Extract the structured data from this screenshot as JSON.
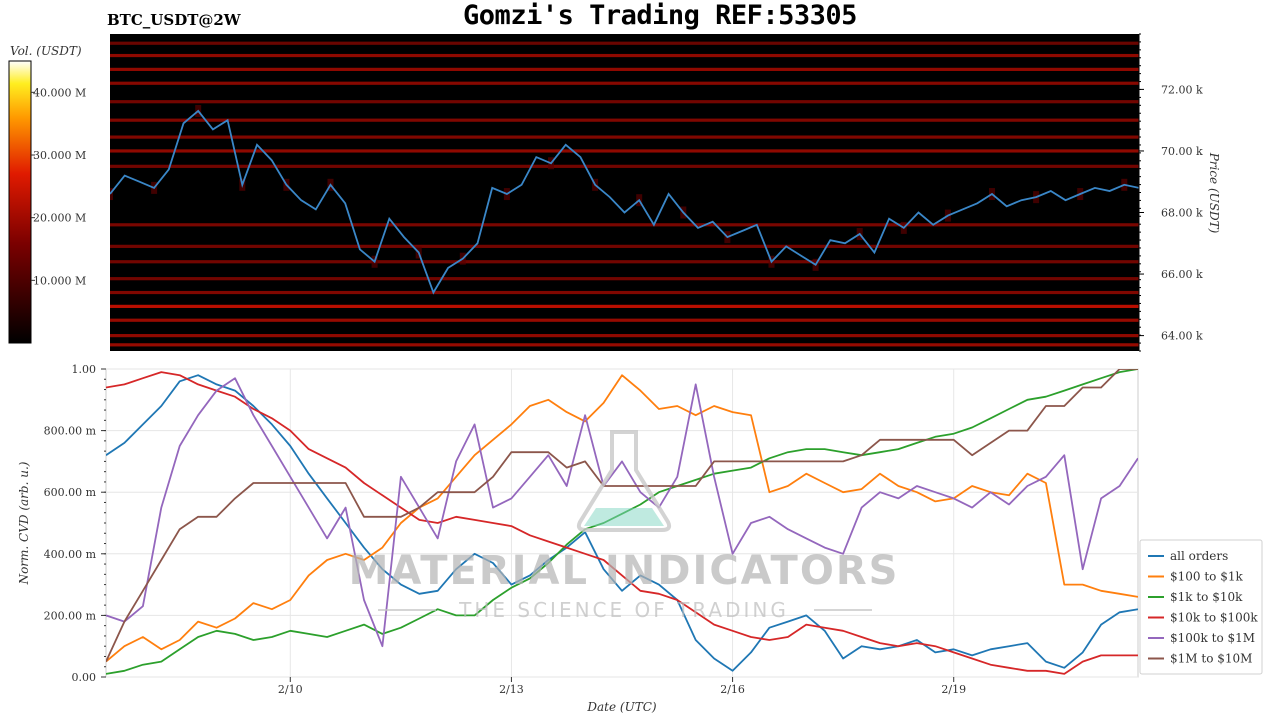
{
  "header": {
    "title": "Gomzi's Trading REF:53305",
    "symbol": "BTC_USDT@2W"
  },
  "watermark": {
    "line1": "MATERIAL INDICATORS",
    "line2": "THE SCIENCE OF TRADING"
  },
  "colors": {
    "heatmap_background": "#000000",
    "price_line": "#3a87c8",
    "liquidity_dim": "#5a0000",
    "liquidity_bright": "#ff2a10"
  },
  "chart_data": [
    {
      "type": "heatmap",
      "title": "",
      "xlabel": "",
      "ylabel": "Price (USDT)",
      "ylim": [
        63500,
        73800
      ],
      "x_start": "2/7",
      "x_end": "2/21",
      "y_ticks": [
        64000,
        66000,
        68000,
        70000,
        72000
      ],
      "y_tick_labels": [
        "64.00 k",
        "66.00 k",
        "68.00 k",
        "70.00 k",
        "72.00 k"
      ],
      "colorbar": {
        "label": "Vol. (USDT)",
        "ticks": [
          10000000,
          20000000,
          30000000,
          40000000
        ],
        "tick_labels": [
          "10.000 M",
          "20.000 M",
          "30.000 M",
          "40.000 M"
        ],
        "range": [
          0,
          45000000
        ],
        "colormap": "black-red-yellow-white"
      },
      "liquidity_bands": [
        {
          "price": 73500,
          "intensity": 0.3
        },
        {
          "price": 73100,
          "intensity": 0.55
        },
        {
          "price": 72650,
          "intensity": 0.55
        },
        {
          "price": 72200,
          "intensity": 0.5
        },
        {
          "price": 71600,
          "intensity": 0.35
        },
        {
          "price": 71000,
          "intensity": 0.45
        },
        {
          "price": 70450,
          "intensity": 0.45
        },
        {
          "price": 70000,
          "intensity": 0.55
        },
        {
          "price": 69500,
          "intensity": 0.35
        },
        {
          "price": 67600,
          "intensity": 0.4
        },
        {
          "price": 66900,
          "intensity": 0.35
        },
        {
          "price": 66400,
          "intensity": 0.35
        },
        {
          "price": 65850,
          "intensity": 0.35
        },
        {
          "price": 65400,
          "intensity": 0.45
        },
        {
          "price": 64950,
          "intensity": 0.85
        },
        {
          "price": 64500,
          "intensity": 0.6
        },
        {
          "price": 64000,
          "intensity": 0.55
        },
        {
          "price": 63700,
          "intensity": 0.6
        }
      ],
      "price_series": {
        "name": "",
        "x": [
          0,
          0.2,
          0.4,
          0.6,
          0.8,
          1.0,
          1.2,
          1.4,
          1.6,
          1.8,
          2.0,
          2.2,
          2.4,
          2.6,
          2.8,
          3.0,
          3.2,
          3.4,
          3.6,
          3.8,
          4.0,
          4.2,
          4.4,
          4.6,
          4.8,
          5.0,
          5.2,
          5.4,
          5.6,
          5.8,
          6.0,
          6.2,
          6.4,
          6.6,
          6.8,
          7.0,
          7.2,
          7.4,
          7.6,
          7.8,
          8.0,
          8.2,
          8.4,
          8.6,
          8.8,
          9.0,
          9.2,
          9.4,
          9.6,
          9.8,
          10.0,
          10.2,
          10.4,
          10.6,
          10.8,
          11.0,
          11.2,
          11.4,
          11.6,
          11.8,
          12.0,
          12.2,
          12.4,
          12.6,
          12.8,
          13.0,
          13.2,
          13.4,
          13.6,
          13.8,
          14.0
        ],
        "y": [
          68600,
          69200,
          69000,
          68800,
          69400,
          70900,
          71300,
          70700,
          71000,
          68900,
          70200,
          69700,
          68900,
          68400,
          68100,
          68900,
          68300,
          66800,
          66400,
          67800,
          67200,
          66700,
          65400,
          66200,
          66500,
          67000,
          68800,
          68600,
          68900,
          69800,
          69600,
          70200,
          69800,
          68900,
          68500,
          68000,
          68400,
          67600,
          68600,
          68000,
          67500,
          67700,
          67200,
          67400,
          67600,
          66400,
          66900,
          66600,
          66300,
          67100,
          67000,
          67300,
          66700,
          67800,
          67500,
          68000,
          67600,
          67900,
          68100,
          68300,
          68600,
          68200,
          68400,
          68500,
          68700,
          68400,
          68600,
          68800,
          68700,
          68900,
          68800
        ]
      }
    },
    {
      "type": "line",
      "title": "",
      "xlabel": "Date (UTC)",
      "ylabel": "Norm. CVD (arb. u.)",
      "ylim": [
        0,
        1
      ],
      "xlim": [
        0,
        14
      ],
      "x_ticks": [
        2.5,
        5.5,
        8.5,
        11.5
      ],
      "x_tick_labels": [
        "2/10",
        "2/13",
        "2/16",
        "2/19"
      ],
      "y_ticks": [
        0,
        0.2,
        0.4,
        0.6,
        0.8,
        1.0
      ],
      "y_tick_labels": [
        "0.00",
        "200.00 m",
        "400.00 m",
        "600.00 m",
        "800.00 m",
        "1.00"
      ],
      "grid": true,
      "legend_position": "right",
      "x": [
        0,
        0.25,
        0.5,
        0.75,
        1.0,
        1.25,
        1.5,
        1.75,
        2.0,
        2.25,
        2.5,
        2.75,
        3.0,
        3.25,
        3.5,
        3.75,
        4.0,
        4.25,
        4.5,
        4.75,
        5.0,
        5.25,
        5.5,
        5.75,
        6.0,
        6.25,
        6.5,
        6.75,
        7.0,
        7.25,
        7.5,
        7.75,
        8.0,
        8.25,
        8.5,
        8.75,
        9.0,
        9.25,
        9.5,
        9.75,
        10.0,
        10.25,
        10.5,
        10.75,
        11.0,
        11.25,
        11.5,
        11.75,
        12.0,
        12.25,
        12.5,
        12.75,
        13.0,
        13.25,
        13.5,
        13.75,
        14.0
      ],
      "series": [
        {
          "name": "all orders",
          "color": "#1f77b4",
          "values": [
            0.72,
            0.76,
            0.82,
            0.88,
            0.96,
            0.98,
            0.95,
            0.93,
            0.88,
            0.82,
            0.75,
            0.66,
            0.58,
            0.5,
            0.42,
            0.35,
            0.3,
            0.27,
            0.28,
            0.35,
            0.4,
            0.37,
            0.3,
            0.33,
            0.38,
            0.42,
            0.47,
            0.35,
            0.28,
            0.33,
            0.3,
            0.25,
            0.12,
            0.06,
            0.02,
            0.08,
            0.16,
            0.18,
            0.2,
            0.15,
            0.06,
            0.1,
            0.09,
            0.1,
            0.12,
            0.08,
            0.09,
            0.07,
            0.09,
            0.1,
            0.11,
            0.05,
            0.03,
            0.08,
            0.17,
            0.21,
            0.22
          ]
        },
        {
          "name": "$100 to $1k",
          "color": "#ff7f0e",
          "values": [
            0.05,
            0.1,
            0.13,
            0.09,
            0.12,
            0.18,
            0.16,
            0.19,
            0.24,
            0.22,
            0.25,
            0.33,
            0.38,
            0.4,
            0.38,
            0.42,
            0.5,
            0.55,
            0.58,
            0.65,
            0.72,
            0.77,
            0.82,
            0.88,
            0.9,
            0.86,
            0.83,
            0.89,
            0.98,
            0.93,
            0.87,
            0.88,
            0.85,
            0.88,
            0.86,
            0.85,
            0.6,
            0.62,
            0.66,
            0.63,
            0.6,
            0.61,
            0.66,
            0.62,
            0.6,
            0.57,
            0.58,
            0.62,
            0.6,
            0.59,
            0.66,
            0.63,
            0.3,
            0.3,
            0.28,
            0.27,
            0.26
          ]
        },
        {
          "name": "$1k to $10k",
          "color": "#2ca02c",
          "values": [
            0.01,
            0.02,
            0.04,
            0.05,
            0.09,
            0.13,
            0.15,
            0.14,
            0.12,
            0.13,
            0.15,
            0.14,
            0.13,
            0.15,
            0.17,
            0.14,
            0.16,
            0.19,
            0.22,
            0.2,
            0.2,
            0.25,
            0.29,
            0.32,
            0.37,
            0.43,
            0.48,
            0.5,
            0.53,
            0.56,
            0.6,
            0.62,
            0.64,
            0.66,
            0.67,
            0.68,
            0.71,
            0.73,
            0.74,
            0.74,
            0.73,
            0.72,
            0.73,
            0.74,
            0.76,
            0.78,
            0.79,
            0.81,
            0.84,
            0.87,
            0.9,
            0.91,
            0.93,
            0.95,
            0.97,
            0.99,
            1.0
          ]
        },
        {
          "name": "$10k to $100k",
          "color": "#d62728",
          "values": [
            0.94,
            0.95,
            0.97,
            0.99,
            0.98,
            0.95,
            0.93,
            0.91,
            0.87,
            0.84,
            0.8,
            0.74,
            0.71,
            0.68,
            0.63,
            0.59,
            0.55,
            0.51,
            0.5,
            0.52,
            0.51,
            0.5,
            0.49,
            0.46,
            0.44,
            0.42,
            0.4,
            0.38,
            0.33,
            0.28,
            0.27,
            0.25,
            0.21,
            0.17,
            0.15,
            0.13,
            0.12,
            0.13,
            0.17,
            0.16,
            0.15,
            0.13,
            0.11,
            0.1,
            0.11,
            0.1,
            0.08,
            0.06,
            0.04,
            0.03,
            0.02,
            0.02,
            0.01,
            0.05,
            0.07,
            0.07,
            0.07
          ]
        },
        {
          "name": "$100k to $1M",
          "color": "#9467bd",
          "values": [
            0.2,
            0.18,
            0.23,
            0.55,
            0.75,
            0.85,
            0.93,
            0.97,
            0.85,
            0.75,
            0.65,
            0.55,
            0.45,
            0.55,
            0.25,
            0.1,
            0.65,
            0.55,
            0.45,
            0.7,
            0.82,
            0.55,
            0.58,
            0.65,
            0.72,
            0.62,
            0.85,
            0.62,
            0.7,
            0.6,
            0.55,
            0.65,
            0.95,
            0.65,
            0.4,
            0.5,
            0.52,
            0.48,
            0.45,
            0.42,
            0.4,
            0.55,
            0.6,
            0.58,
            0.62,
            0.6,
            0.58,
            0.55,
            0.6,
            0.56,
            0.62,
            0.65,
            0.72,
            0.35,
            0.58,
            0.62,
            0.71
          ]
        },
        {
          "name": "$1M to $10M",
          "color": "#8c564b",
          "values": [
            0.05,
            0.18,
            0.28,
            0.38,
            0.48,
            0.52,
            0.52,
            0.58,
            0.63,
            0.63,
            0.63,
            0.63,
            0.63,
            0.63,
            0.52,
            0.52,
            0.52,
            0.55,
            0.6,
            0.6,
            0.6,
            0.65,
            0.73,
            0.73,
            0.73,
            0.68,
            0.7,
            0.62,
            0.62,
            0.62,
            0.62,
            0.62,
            0.62,
            0.7,
            0.7,
            0.7,
            0.7,
            0.7,
            0.7,
            0.7,
            0.7,
            0.72,
            0.77,
            0.77,
            0.77,
            0.77,
            0.77,
            0.72,
            0.76,
            0.8,
            0.8,
            0.88,
            0.88,
            0.94,
            0.94,
            1.0,
            1.0
          ]
        }
      ]
    }
  ]
}
